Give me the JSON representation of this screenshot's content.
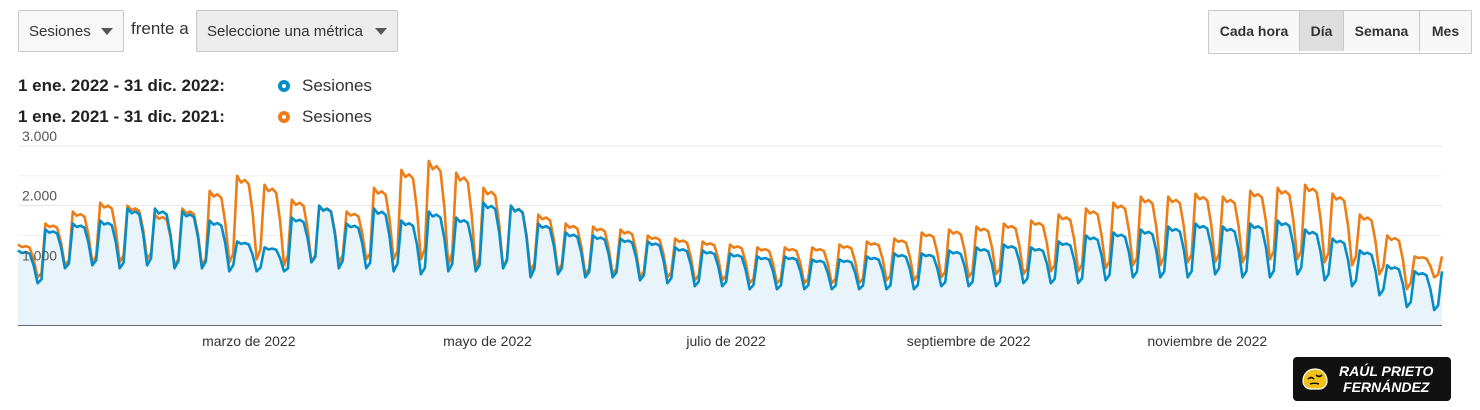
{
  "controls": {
    "metric_select": {
      "value": "Sesiones"
    },
    "vs_label": "frente a",
    "compare_select": {
      "value": "Seleccione una métrica"
    },
    "granularity": [
      {
        "label": "Cada hora",
        "active": false
      },
      {
        "label": "Día",
        "active": true
      },
      {
        "label": "Semana",
        "active": false
      },
      {
        "label": "Mes",
        "active": false
      }
    ]
  },
  "legend": [
    {
      "range": "1 ene. 2022 - 31 dic. 2022:",
      "series": "Sesiones",
      "color": "#058dc7"
    },
    {
      "range": "1 ene. 2021 - 31 dic. 2021:",
      "series": "Sesiones",
      "color": "#ed7e17"
    }
  ],
  "brand": {
    "line1": "RAÚL PRIETO",
    "line2": "FERNÁNDEZ",
    "icon": "brain-logo-icon"
  },
  "chart_data": {
    "type": "line",
    "x_axis": {
      "labels": [
        "marzo de 2022",
        "mayo de 2022",
        "julio de 2022",
        "septiembre de 2022",
        "noviembre de 2022"
      ]
    },
    "y_axis": {
      "ticks": [
        "1.000",
        "2.000",
        "3.000"
      ],
      "min": 0,
      "max": 3000
    },
    "grid": true,
    "area_fill_series": 0,
    "days": 365,
    "series": [
      {
        "name": "Sesiones",
        "period": "1 ene. 2022 - 31 dic. 2022",
        "color": "#058dc7",
        "weekly_peaks": [
          1250,
          1600,
          1700,
          1750,
          1950,
          1950,
          1900,
          1750,
          1400,
          1300,
          1800,
          2000,
          1700,
          1950,
          1750,
          1900,
          1800,
          2050,
          2000,
          1700,
          1550,
          1500,
          1450,
          1400,
          1300,
          1250,
          1200,
          1150,
          1150,
          1100,
          1100,
          1150,
          1200,
          1200,
          1250,
          1300,
          1350,
          1300,
          1400,
          1500,
          1550,
          1600,
          1650,
          1700,
          1650,
          1700,
          1750,
          1600,
          1450,
          1250,
          1000,
          900
        ],
        "weekly_troughs": [
          700,
          950,
          1000,
          950,
          1000,
          950,
          950,
          900,
          900,
          900,
          1050,
          950,
          950,
          900,
          850,
          900,
          900,
          950,
          800,
          850,
          800,
          800,
          750,
          700,
          650,
          650,
          600,
          600,
          600,
          600,
          600,
          600,
          600,
          650,
          650,
          650,
          700,
          700,
          700,
          750,
          800,
          800,
          800,
          850,
          800,
          800,
          850,
          750,
          650,
          500,
          300,
          250
        ]
      },
      {
        "name": "Sesiones",
        "period": "1 ene. 2021 - 31 dic. 2021",
        "color": "#ed7e17",
        "weekly_peaks": [
          1350,
          1700,
          1900,
          2050,
          2000,
          1850,
          1950,
          2250,
          2500,
          2350,
          2100,
          2000,
          1900,
          2300,
          2600,
          2750,
          2550,
          2300,
          2000,
          1850,
          1700,
          1650,
          1600,
          1500,
          1450,
          1400,
          1350,
          1300,
          1300,
          1300,
          1350,
          1400,
          1450,
          1550,
          1600,
          1650,
          1700,
          1750,
          1850,
          1950,
          2050,
          2150,
          2150,
          2200,
          2150,
          2250,
          2300,
          2350,
          2200,
          1850,
          1500,
          1150
        ],
        "weekly_troughs": [
          800,
          1000,
          1050,
          1050,
          1100,
          1000,
          1000,
          1050,
          1100,
          1000,
          1050,
          1050,
          1100,
          1100,
          1100,
          1000,
          950,
          950,
          900,
          900,
          850,
          850,
          800,
          800,
          750,
          750,
          700,
          700,
          700,
          700,
          700,
          750,
          750,
          800,
          800,
          850,
          850,
          900,
          900,
          950,
          1000,
          1000,
          1050,
          1050,
          1050,
          1100,
          1100,
          1050,
          1000,
          850,
          600,
          800
        ]
      }
    ]
  }
}
